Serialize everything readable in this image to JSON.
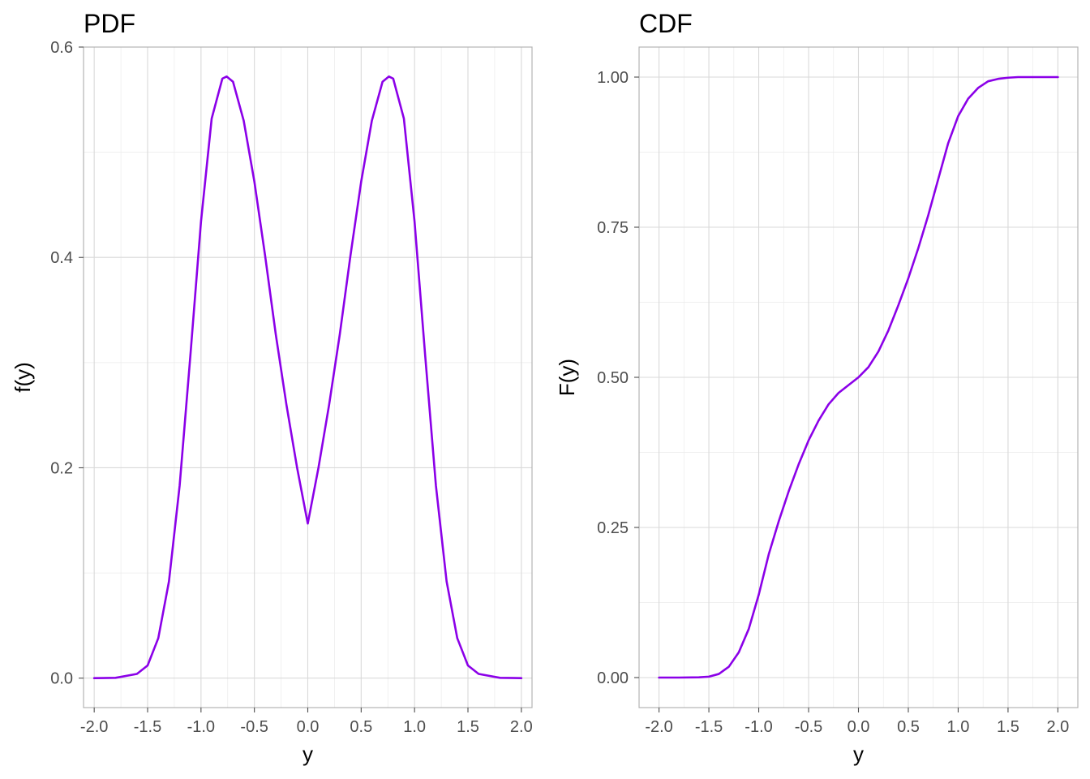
{
  "chart_data": [
    {
      "type": "line",
      "title": "PDF",
      "xlabel": "y",
      "ylabel": "f(y)",
      "xlim": [
        -2.1,
        2.1
      ],
      "ylim": [
        -0.028,
        0.6
      ],
      "x_ticks": [
        -2.0,
        -1.5,
        -1.0,
        -0.5,
        0.0,
        0.5,
        1.0,
        1.5,
        2.0
      ],
      "x_tick_labels": [
        "-2.0",
        "-1.5",
        "-1.0",
        "-0.5",
        "0.0",
        "0.5",
        "1.0",
        "1.5",
        "2.0"
      ],
      "y_ticks": [
        0.0,
        0.2,
        0.4,
        0.6
      ],
      "y_tick_labels": [
        "0.0",
        "0.2",
        "0.4",
        "0.6"
      ],
      "grid": true,
      "color": "#8B00E8",
      "series": [
        {
          "x": [
            -2.0,
            -1.8,
            -1.6,
            -1.5,
            -1.4,
            -1.3,
            -1.2,
            -1.1,
            -1.0,
            -0.9,
            -0.8,
            -0.76,
            -0.7,
            -0.6,
            -0.5,
            -0.4,
            -0.3,
            -0.2,
            -0.1,
            0.0,
            0.1,
            0.2,
            0.3,
            0.4,
            0.5,
            0.6,
            0.7,
            0.76,
            0.8,
            0.9,
            1.0,
            1.1,
            1.2,
            1.3,
            1.4,
            1.5,
            1.6,
            1.8,
            2.0
          ],
          "y": [
            0.0,
            0.0003,
            0.004,
            0.012,
            0.038,
            0.092,
            0.183,
            0.306,
            0.434,
            0.532,
            0.57,
            0.572,
            0.567,
            0.53,
            0.472,
            0.402,
            0.327,
            0.26,
            0.2,
            0.147,
            0.2,
            0.26,
            0.327,
            0.402,
            0.472,
            0.53,
            0.567,
            0.572,
            0.57,
            0.532,
            0.434,
            0.306,
            0.183,
            0.092,
            0.038,
            0.012,
            0.004,
            0.0003,
            0.0
          ]
        }
      ]
    },
    {
      "type": "line",
      "title": "CDF",
      "xlabel": "y",
      "ylabel": "F(y)",
      "xlim": [
        -2.2,
        2.2
      ],
      "ylim": [
        -0.05,
        1.05
      ],
      "x_ticks": [
        -2.0,
        -1.5,
        -1.0,
        -0.5,
        0.0,
        0.5,
        1.0,
        1.5,
        2.0
      ],
      "x_tick_labels": [
        "-2.0",
        "-1.5",
        "-1.0",
        "-0.5",
        "0.0",
        "0.5",
        "1.0",
        "1.5",
        "2.0"
      ],
      "y_ticks": [
        0.0,
        0.25,
        0.5,
        0.75,
        1.0
      ],
      "y_tick_labels": [
        "0.00",
        "0.25",
        "0.50",
        "0.75",
        "1.00"
      ],
      "grid": true,
      "color": "#8B00E8",
      "series": [
        {
          "x": [
            -2.0,
            -1.8,
            -1.6,
            -1.5,
            -1.4,
            -1.3,
            -1.2,
            -1.1,
            -1.0,
            -0.9,
            -0.8,
            -0.7,
            -0.6,
            -0.5,
            -0.4,
            -0.3,
            -0.2,
            -0.1,
            0.0,
            0.1,
            0.2,
            0.3,
            0.4,
            0.5,
            0.6,
            0.7,
            0.8,
            0.9,
            1.0,
            1.1,
            1.2,
            1.3,
            1.4,
            1.5,
            1.6,
            1.8,
            2.0
          ],
          "y": [
            0.0,
            0.0,
            0.0004,
            0.0015,
            0.006,
            0.018,
            0.042,
            0.081,
            0.138,
            0.205,
            0.26,
            0.31,
            0.355,
            0.395,
            0.428,
            0.455,
            0.474,
            0.487,
            0.5,
            0.517,
            0.543,
            0.578,
            0.62,
            0.665,
            0.715,
            0.77,
            0.83,
            0.89,
            0.935,
            0.964,
            0.982,
            0.993,
            0.997,
            0.999,
            1.0,
            1.0,
            1.0
          ]
        }
      ]
    }
  ]
}
